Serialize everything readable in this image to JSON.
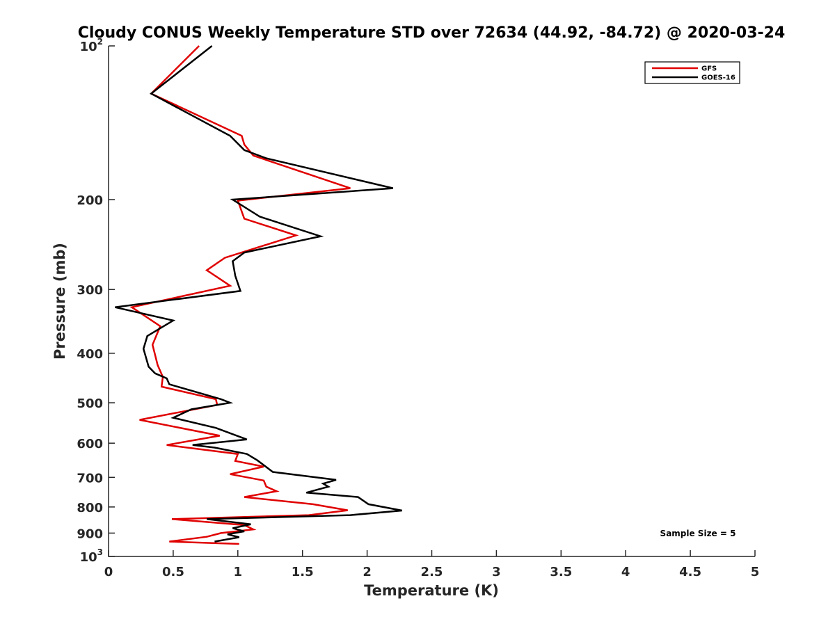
{
  "chart_data": {
    "type": "line",
    "title": "Cloudy CONUS Weekly Temperature STD over 72634 (44.92, -84.72) @ 2020-03-24",
    "xlabel": "Temperature (K)",
    "ylabel": "Pressure (mb)",
    "xlim": [
      0,
      5
    ],
    "ylim": [
      100,
      1000
    ],
    "y_scale": "log",
    "y_reversed": true,
    "x_ticks": [
      "0",
      "0.5",
      "1",
      "1.5",
      "2",
      "2.5",
      "3",
      "3.5",
      "4",
      "4.5",
      "5"
    ],
    "y_ticks": [
      {
        "value": 100,
        "base": "10",
        "exp": "2"
      },
      {
        "value": 200,
        "label": "200"
      },
      {
        "value": 300,
        "label": "300"
      },
      {
        "value": 400,
        "label": "400"
      },
      {
        "value": 500,
        "label": "500"
      },
      {
        "value": 600,
        "label": "600"
      },
      {
        "value": 700,
        "label": "700"
      },
      {
        "value": 800,
        "label": "800"
      },
      {
        "value": 900,
        "label": "900"
      },
      {
        "value": 1000,
        "base": "10",
        "exp": "3"
      }
    ],
    "legend_position": "top-right",
    "grid": false,
    "annotation": "Sample Size = 5",
    "series": [
      {
        "name": "GFS",
        "color": "#e00000",
        "x": [
          0.7,
          0.33,
          1.03,
          1.05,
          1.12,
          1.87,
          1.0,
          1.05,
          1.45,
          0.9,
          0.76,
          0.94,
          0.18,
          0.4,
          0.34,
          0.38,
          0.42,
          0.41,
          0.83,
          0.84,
          0.24,
          0.86,
          0.45,
          1.0,
          0.98,
          1.2,
          0.94,
          1.2,
          1.22,
          1.3,
          1.05,
          1.58,
          1.85,
          1.55,
          0.49,
          1.05,
          1.12,
          0.87,
          0.76,
          0.47,
          1.01
        ],
        "y": [
          100,
          124,
          150,
          156,
          164,
          190,
          201,
          218,
          235,
          260,
          275,
          295,
          325,
          354,
          385,
          422,
          445,
          465,
          492,
          505,
          540,
          580,
          605,
          630,
          650,
          667,
          690,
          710,
          730,
          745,
          765,
          790,
          812,
          830,
          845,
          868,
          885,
          900,
          915,
          935,
          945
        ]
      },
      {
        "name": "GOES-16",
        "color": "#000000",
        "x": [
          0.8,
          0.33,
          0.94,
          1.05,
          1.22,
          2.2,
          0.96,
          1.17,
          1.64,
          1.05,
          0.96,
          0.98,
          1.02,
          0.05,
          0.5,
          0.3,
          0.27,
          0.31,
          0.36,
          0.45,
          0.47,
          0.87,
          0.94,
          0.64,
          0.5,
          0.83,
          1.07,
          0.65,
          0.82,
          1.07,
          1.15,
          1.21,
          1.27,
          1.76,
          1.66,
          1.7,
          1.53,
          1.93,
          2.01,
          2.27,
          1.87,
          0.76,
          1.1,
          0.96,
          1.05,
          0.92,
          1.01,
          0.82
        ],
        "y": [
          100,
          124,
          150,
          160,
          166,
          190,
          200,
          216,
          236,
          254,
          264,
          282,
          302,
          325,
          345,
          370,
          392,
          425,
          438,
          448,
          460,
          492,
          500,
          515,
          535,
          560,
          590,
          605,
          612,
          630,
          648,
          665,
          683,
          708,
          720,
          730,
          750,
          765,
          790,
          813,
          830,
          845,
          865,
          880,
          893,
          905,
          917,
          935
        ]
      }
    ]
  }
}
